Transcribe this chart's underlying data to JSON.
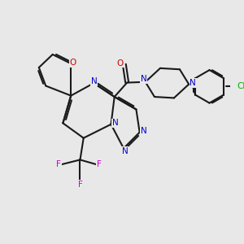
{
  "background_color": "#e8e8e8",
  "bond_color": "#1a1a1a",
  "N_color": "#0000cc",
  "O_color": "#cc0000",
  "F_color": "#cc00cc",
  "Cl_color": "#00aa00",
  "figsize": [
    3.0,
    3.0
  ],
  "dpi": 100,
  "xlim": [
    0,
    10
  ],
  "ylim": [
    0,
    10
  ]
}
